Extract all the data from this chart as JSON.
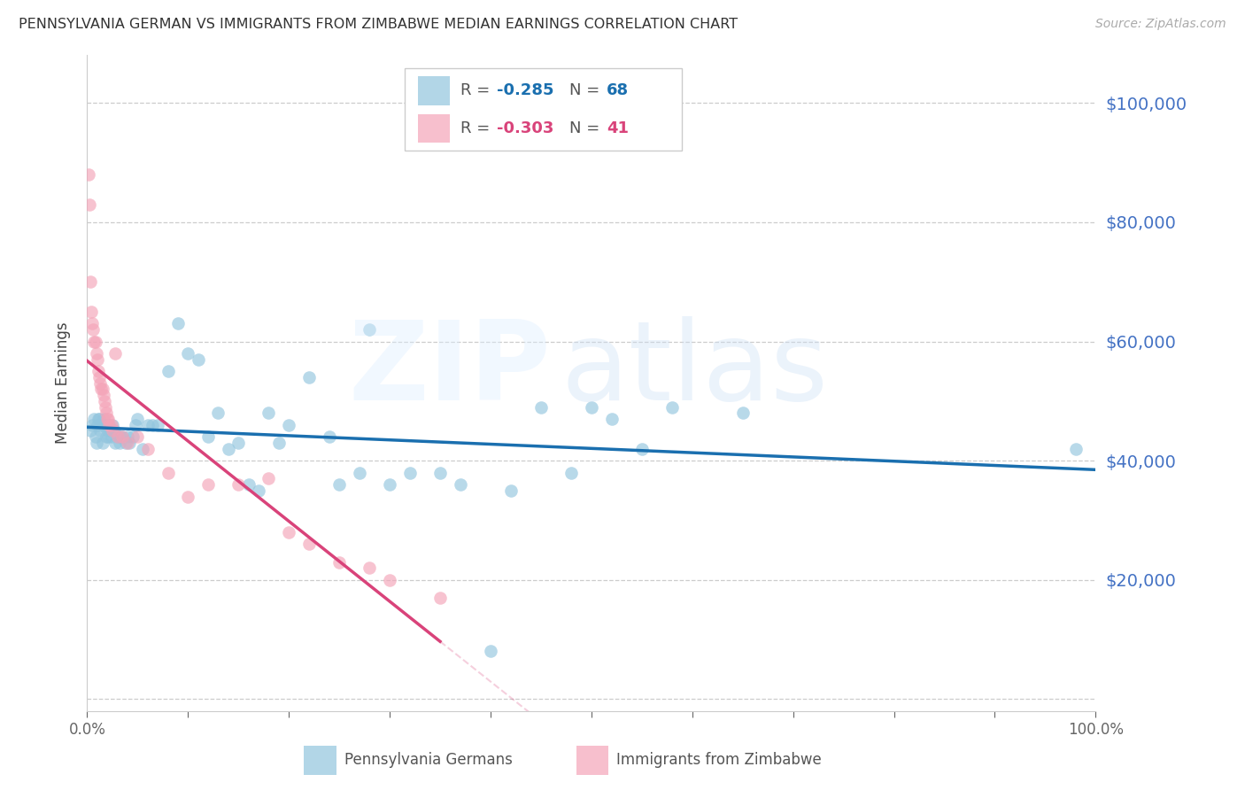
{
  "title": "PENNSYLVANIA GERMAN VS IMMIGRANTS FROM ZIMBABWE MEDIAN EARNINGS CORRELATION CHART",
  "source": "Source: ZipAtlas.com",
  "ylabel": "Median Earnings",
  "yaxis_ticks": [
    0,
    20000,
    40000,
    60000,
    80000,
    100000
  ],
  "ylim": [
    -2000,
    108000
  ],
  "xlim": [
    0,
    1.0
  ],
  "legend_r1": "-0.285",
  "legend_n1": "68",
  "legend_r2": "-0.303",
  "legend_n2": "41",
  "blue_color": "#92c5de",
  "pink_color": "#f4a4b8",
  "trend_blue": "#1a6faf",
  "trend_pink": "#d9437a",
  "blue_scatter_x": [
    0.003,
    0.005,
    0.007,
    0.008,
    0.009,
    0.01,
    0.011,
    0.012,
    0.013,
    0.014,
    0.015,
    0.016,
    0.017,
    0.018,
    0.019,
    0.02,
    0.021,
    0.022,
    0.024,
    0.025,
    0.027,
    0.028,
    0.03,
    0.032,
    0.033,
    0.035,
    0.038,
    0.04,
    0.042,
    0.045,
    0.048,
    0.05,
    0.055,
    0.06,
    0.065,
    0.07,
    0.08,
    0.09,
    0.1,
    0.11,
    0.12,
    0.13,
    0.14,
    0.15,
    0.16,
    0.17,
    0.18,
    0.19,
    0.2,
    0.22,
    0.24,
    0.25,
    0.27,
    0.28,
    0.3,
    0.32,
    0.35,
    0.37,
    0.4,
    0.42,
    0.45,
    0.48,
    0.5,
    0.52,
    0.55,
    0.58,
    0.65,
    0.98
  ],
  "blue_scatter_y": [
    45000,
    46000,
    47000,
    44000,
    43000,
    46000,
    47000,
    47000,
    45000,
    46000,
    43000,
    47000,
    46000,
    46000,
    44000,
    45000,
    44000,
    46000,
    44000,
    46000,
    45000,
    43000,
    44000,
    43000,
    44000,
    44000,
    43000,
    44000,
    43000,
    44000,
    46000,
    47000,
    42000,
    46000,
    46000,
    46000,
    55000,
    63000,
    58000,
    57000,
    44000,
    48000,
    42000,
    43000,
    36000,
    35000,
    48000,
    43000,
    46000,
    54000,
    44000,
    36000,
    38000,
    62000,
    36000,
    38000,
    38000,
    36000,
    8000,
    35000,
    49000,
    38000,
    49000,
    47000,
    42000,
    49000,
    48000,
    42000
  ],
  "pink_scatter_x": [
    0.001,
    0.002,
    0.003,
    0.004,
    0.005,
    0.006,
    0.007,
    0.008,
    0.009,
    0.01,
    0.011,
    0.012,
    0.013,
    0.014,
    0.015,
    0.016,
    0.017,
    0.018,
    0.019,
    0.02,
    0.021,
    0.022,
    0.024,
    0.025,
    0.028,
    0.03,
    0.035,
    0.04,
    0.05,
    0.06,
    0.08,
    0.1,
    0.12,
    0.15,
    0.18,
    0.2,
    0.22,
    0.25,
    0.28,
    0.3,
    0.35
  ],
  "pink_scatter_y": [
    88000,
    83000,
    70000,
    65000,
    63000,
    62000,
    60000,
    60000,
    58000,
    57000,
    55000,
    54000,
    53000,
    52000,
    52000,
    51000,
    50000,
    49000,
    48000,
    47000,
    47000,
    46000,
    46000,
    45000,
    58000,
    44000,
    44000,
    43000,
    44000,
    42000,
    38000,
    34000,
    36000,
    36000,
    37000,
    28000,
    26000,
    23000,
    22000,
    20000,
    17000
  ]
}
